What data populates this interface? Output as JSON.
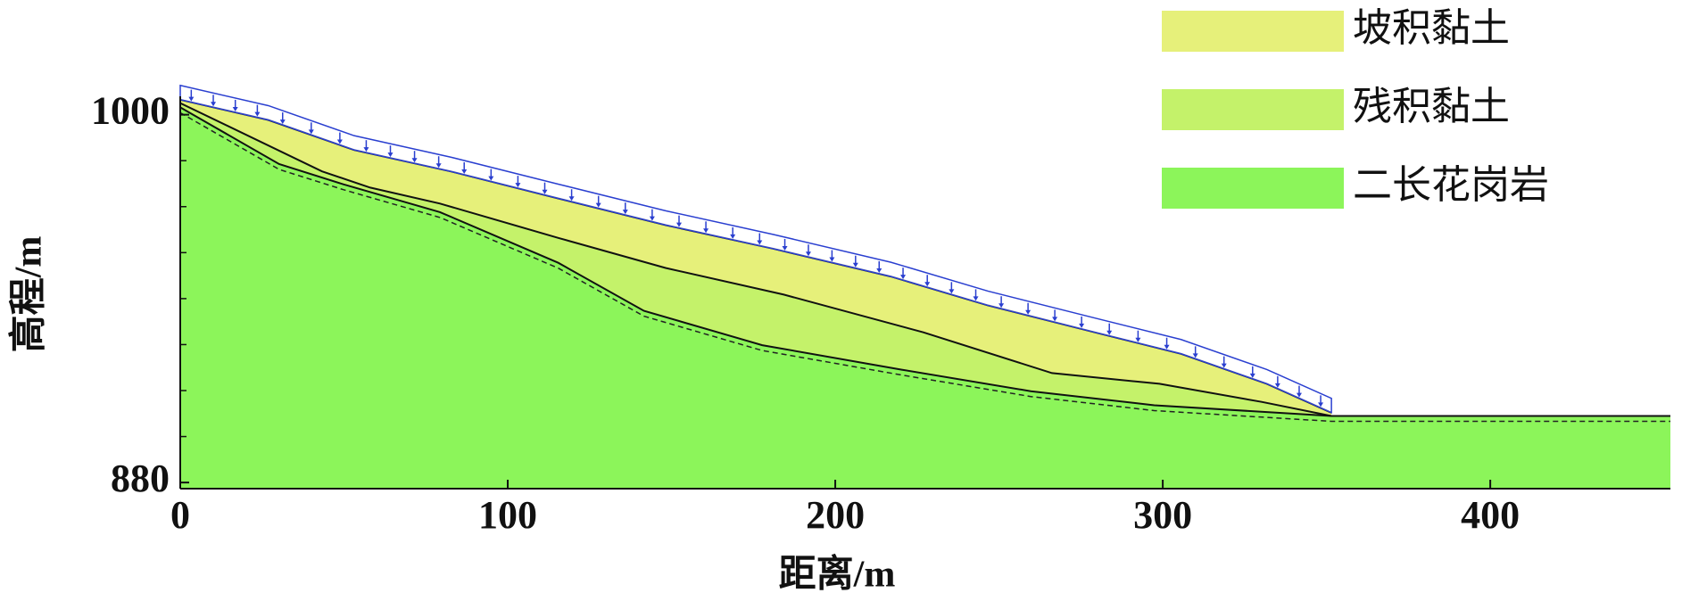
{
  "chart_data": {
    "type": "profile",
    "x_label": "距离/m",
    "y_label": "高程/m",
    "xlim": [
      0,
      455
    ],
    "ylim": [
      878,
      1006
    ],
    "xticks": [
      0,
      100,
      200,
      300,
      400
    ],
    "yticks": [
      880,
      1000
    ],
    "yminor_ticks": [
      895,
      910,
      925,
      940,
      955,
      970,
      985
    ],
    "legend": "top-right",
    "series": [
      {
        "name": "坡积黏土",
        "color": "#e6f07a",
        "x": [
          0,
          26.9,
          53.1,
          82.6,
          115.4,
          148.2,
          181.0,
          217.0,
          246.6,
          279.3,
          305.6,
          331.8,
          351.5
        ],
        "values": [
          1004.9,
          998.3,
          988.5,
          981.5,
          972.7,
          964.0,
          956.3,
          947.2,
          937.8,
          929.0,
          922.0,
          912.2,
          902.8
        ]
      },
      {
        "name": "残积黏土",
        "color": "#c4f26a",
        "x": [
          0,
          43.3,
          58.0,
          79.3,
          115.4,
          148.2,
          184.3,
          226.9,
          266.2,
          299.0,
          330.2,
          351.5
        ],
        "values": [
          1003.8,
          981.5,
          976.2,
          971.0,
          959.8,
          950.0,
          941.3,
          929.0,
          915.7,
          912.2,
          906.3,
          901.7
        ]
      },
      {
        "name": "二长花岗岩",
        "color": "#8cf55a",
        "x": [
          0,
          30.2,
          49.8,
          79.3,
          115.4,
          141.6,
          177.7,
          220.3,
          259.7,
          297.4,
          351.5,
          455
        ],
        "values": [
          1002.4,
          983.9,
          977.3,
          968.2,
          951.7,
          936.0,
          924.8,
          916.8,
          909.8,
          905.2,
          901.7,
          901.7
        ]
      }
    ]
  }
}
